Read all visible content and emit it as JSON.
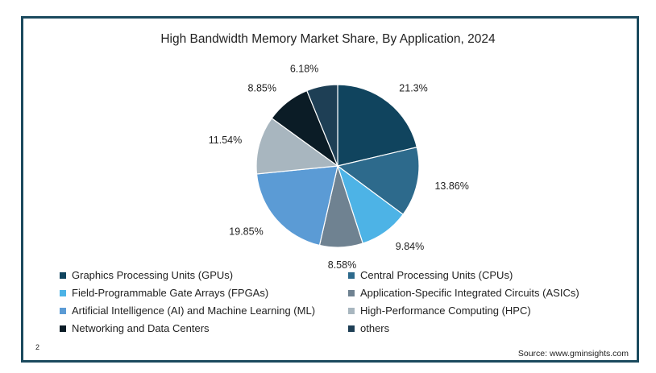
{
  "chart_data": {
    "type": "pie",
    "title": "High Bandwidth Memory Market Share, By Application, 2024",
    "slices": [
      {
        "label": "Graphics Processing Units (GPUs)",
        "value": 21.3,
        "value_label": "21.3%",
        "color": "#10445e"
      },
      {
        "label": "Central Processing Units (CPUs)",
        "value": 13.86,
        "value_label": "13.86%",
        "color": "#2d6a8c"
      },
      {
        "label": "Field-Programmable Gate Arrays (FPGAs)",
        "value": 9.84,
        "value_label": "9.84%",
        "color": "#4db3e6"
      },
      {
        "label": "Application-Specific Integrated Circuits (ASICs)",
        "value": 8.58,
        "value_label": "8.58%",
        "color": "#6f8291"
      },
      {
        "label": "Artificial Intelligence (AI) and Machine Learning (ML)",
        "value": 19.85,
        "value_label": "19.85%",
        "color": "#5b9bd5"
      },
      {
        "label": "High-Performance Computing (HPC)",
        "value": 11.54,
        "value_label": "11.54%",
        "color": "#a8b6bf"
      },
      {
        "label": "Networking and Data Centers",
        "value": 8.85,
        "value_label": "8.85%",
        "color": "#0b1c26"
      },
      {
        "label": "others",
        "value": 6.18,
        "value_label": "6.18%",
        "color": "#1e3f55"
      }
    ],
    "legend_placement": "bottom"
  },
  "footer": {
    "page_number": "2",
    "source": "Source: www.gminsights.com"
  }
}
